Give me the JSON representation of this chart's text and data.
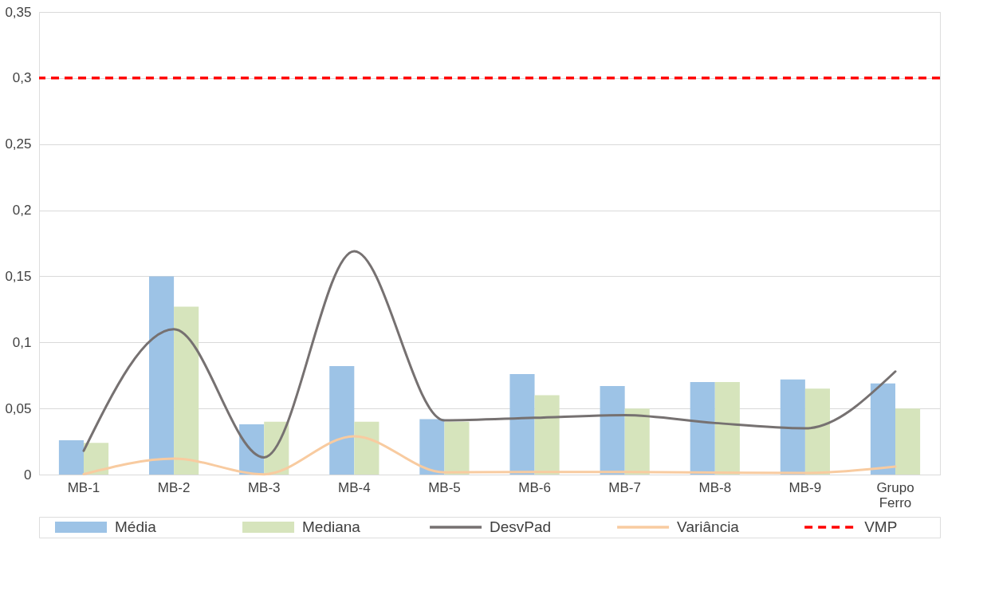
{
  "chart_data": {
    "type": "bar",
    "categories": [
      "MB-1",
      "MB-2",
      "MB-3",
      "MB-4",
      "MB-5",
      "MB-6",
      "MB-7",
      "MB-8",
      "MB-9",
      "Grupo Ferro"
    ],
    "series": [
      {
        "name": "Média",
        "color": "#9dc3e6",
        "values": [
          0.026,
          0.15,
          0.038,
          0.082,
          0.042,
          0.076,
          0.067,
          0.07,
          0.072,
          0.069
        ]
      },
      {
        "name": "Mediana",
        "color": "#d6e4bc",
        "values": [
          0.024,
          0.127,
          0.04,
          0.04,
          0.04,
          0.06,
          0.05,
          0.07,
          0.065,
          0.05
        ]
      },
      {
        "name": "DesvPad",
        "type": "line",
        "color": "#767171",
        "values": [
          0.018,
          0.11,
          0.013,
          0.169,
          0.041,
          0.043,
          0.045,
          0.039,
          0.035,
          0.078
        ]
      },
      {
        "name": "Variância",
        "type": "line",
        "color": "#f8cba0",
        "values": [
          0.0003,
          0.012,
          0.0002,
          0.029,
          0.0017,
          0.0019,
          0.002,
          0.0015,
          0.0012,
          0.006
        ]
      }
    ],
    "ylim": [
      0,
      0.35
    ],
    "yticks": [
      0,
      {
        "value": 0.05,
        "label": "0,05"
      },
      {
        "value": 0.1,
        "label": "0,1"
      },
      {
        "value": 0.15,
        "label": "0,15"
      },
      {
        "value": 0.2,
        "label": "0,2"
      },
      {
        "value": 0.25,
        "label": "0,25"
      },
      {
        "value": 0.3,
        "label": "0,3"
      },
      {
        "value": 0.35,
        "label": "0,35"
      }
    ],
    "ref_lines": [
      {
        "axis": "y",
        "value": 0.3,
        "label": "VMP",
        "color": "#ff0000",
        "line_style": "dashed"
      }
    ],
    "grid": "y",
    "legend": "bottom"
  }
}
